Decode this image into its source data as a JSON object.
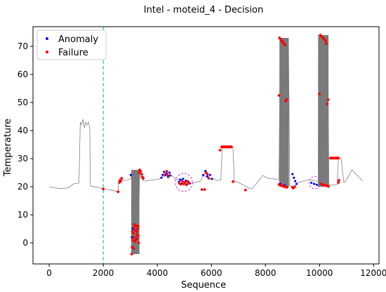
{
  "chart_data": {
    "type": "scatter",
    "title": "Intel - moteid_4 - Decision",
    "xlabel": "Sequence",
    "ylabel": "Temperature",
    "xlim": [
      -600,
      12200
    ],
    "ylim": [
      -7.5,
      77
    ],
    "xticks": [
      0,
      2000,
      4000,
      6000,
      8000,
      10000,
      12000
    ],
    "yticks": [
      0,
      10,
      20,
      30,
      40,
      50,
      60,
      70
    ],
    "legend_position": "upper-left",
    "vertical_line": {
      "x": 2000,
      "color": "#2ec4a0",
      "style": "dashed"
    },
    "highlight_circles": [
      {
        "x": 4980,
        "y": 21.5,
        "rx": 320,
        "ry": 3.2
      },
      {
        "x": 9830,
        "y": 21.5,
        "rx": 220,
        "ry": 2.2
      }
    ],
    "signal": {
      "name": "",
      "color": "#808080",
      "x": [
        0,
        400,
        700,
        900,
        1100,
        1150,
        1200,
        1250,
        1300,
        1350,
        1400,
        1450,
        1500,
        1520,
        1550,
        1800,
        2000,
        2300,
        2550,
        2570,
        2600,
        2800,
        3000,
        3050,
        3100,
        3150,
        3200,
        3250,
        3300,
        3350,
        3400,
        3500,
        3700,
        3900,
        4100,
        4200,
        4300,
        4400,
        4500,
        4600,
        4700,
        4800,
        4900,
        5000,
        5100,
        5200,
        5300,
        5400,
        5500,
        5600,
        5700,
        5800,
        5900,
        6000,
        6100,
        6200,
        6350,
        6400,
        6800,
        6850,
        7000,
        7200,
        7400,
        7500,
        7700,
        7900,
        8100,
        8300,
        8500,
        8550,
        8850,
        8900,
        9050,
        9200,
        9400,
        9600,
        9800,
        9900,
        10000,
        10050,
        10300,
        10350,
        10650,
        10700,
        10800,
        10900,
        11000,
        11200,
        11400,
        11600
      ],
      "y": [
        20,
        19.3,
        19.6,
        21,
        21.3,
        43,
        42,
        44,
        41,
        43,
        42,
        43,
        41,
        20.5,
        20.2,
        19.8,
        19.2,
        18.8,
        18.2,
        22,
        22.5,
        22.2,
        22.7,
        24,
        2,
        5,
        0,
        4,
        6,
        25,
        23,
        22,
        22.2,
        22.5,
        22.8,
        23.5,
        24,
        23.8,
        24.2,
        23.5,
        22.5,
        22.8,
        22.2,
        21.5,
        21,
        21.2,
        21.3,
        21.5,
        21.8,
        22,
        24,
        23.5,
        23.2,
        22.5,
        22.8,
        22.2,
        22.5,
        34,
        34,
        22,
        21.5,
        20.5,
        19.5,
        19.2,
        21.5,
        24,
        23,
        22.8,
        22.5,
        72,
        72,
        20.5,
        19.8,
        21.5,
        22,
        22.5,
        22.2,
        22,
        21.8,
        73,
        73,
        20.5,
        20.8,
        30,
        30,
        21.5,
        22.5,
        26,
        24,
        22
      ]
    },
    "dense_bands": [
      {
        "x0": 3040,
        "x1": 3330,
        "y0": -4,
        "y1": 26
      },
      {
        "x0": 8520,
        "x1": 8860,
        "y0": 20,
        "y1": 73
      },
      {
        "x0": 9950,
        "x1": 10330,
        "y0": 20,
        "y1": 74
      }
    ],
    "series": [
      {
        "name": "Anomaly",
        "marker": "dot",
        "color": "#0000ff",
        "points": [
          [
            3020,
            24.2
          ],
          [
            3060,
            2
          ],
          [
            3100,
            5
          ],
          [
            4150,
            23.2
          ],
          [
            4200,
            24.2
          ],
          [
            4250,
            25.3
          ],
          [
            4300,
            24.1
          ],
          [
            4350,
            24.7
          ],
          [
            4400,
            23.5
          ],
          [
            4450,
            25.0
          ],
          [
            4480,
            24.0
          ],
          [
            4800,
            21.8
          ],
          [
            4850,
            22.5
          ],
          [
            4900,
            21.1
          ],
          [
            4950,
            22.8
          ],
          [
            5000,
            21.4
          ],
          [
            5050,
            22.1
          ],
          [
            5100,
            20.8
          ],
          [
            5150,
            21.7
          ],
          [
            5200,
            21.2
          ],
          [
            5700,
            24.2
          ],
          [
            5780,
            25.6
          ],
          [
            5850,
            23.7
          ],
          [
            5950,
            24.2
          ],
          [
            6020,
            22.8
          ],
          [
            8550,
            21.0
          ],
          [
            8700,
            20.5
          ],
          [
            9000,
            24.5
          ],
          [
            9050,
            23.2
          ],
          [
            9100,
            22.0
          ],
          [
            9150,
            21.0
          ],
          [
            9700,
            21.4
          ],
          [
            9800,
            21.0
          ],
          [
            9900,
            20.7
          ]
        ]
      },
      {
        "name": "Failure",
        "marker": "diamond",
        "color": "#ff0000",
        "points": [
          [
            2000,
            19.2
          ],
          [
            2550,
            18.2
          ],
          [
            2600,
            21.5
          ],
          [
            2620,
            22.3
          ],
          [
            2650,
            22.0
          ],
          [
            2680,
            23.0
          ],
          [
            3050,
            -4.0
          ],
          [
            3070,
            -1.5
          ],
          [
            3090,
            1.0
          ],
          [
            3110,
            3.5
          ],
          [
            3130,
            5.5
          ],
          [
            3150,
            2.0
          ],
          [
            3170,
            0.5
          ],
          [
            3190,
            4.5
          ],
          [
            3210,
            6.0
          ],
          [
            3230,
            3.0
          ],
          [
            3250,
            1.5
          ],
          [
            3270,
            5.0
          ],
          [
            3290,
            2.5
          ],
          [
            3310,
            0.0
          ],
          [
            3080,
            4.0
          ],
          [
            3120,
            -2.0
          ],
          [
            3160,
            6.5
          ],
          [
            3200,
            1.0
          ],
          [
            3240,
            4.0
          ],
          [
            3280,
            6.0
          ],
          [
            3330,
            25.0
          ],
          [
            3350,
            26.0
          ],
          [
            3380,
            25.5
          ],
          [
            3420,
            24.5
          ],
          [
            3450,
            23.5
          ],
          [
            3480,
            23.0
          ],
          [
            4300,
            24.5
          ],
          [
            4350,
            25.5
          ],
          [
            4400,
            24.0
          ],
          [
            4820,
            21.2
          ],
          [
            4870,
            20.9
          ],
          [
            4920,
            22.0
          ],
          [
            4970,
            21.0
          ],
          [
            5020,
            21.6
          ],
          [
            5070,
            20.7
          ],
          [
            5120,
            21.9
          ],
          [
            5170,
            21.3
          ],
          [
            5650,
            19.0
          ],
          [
            5750,
            19.0
          ],
          [
            5800,
            25.0
          ],
          [
            5850,
            24.5
          ],
          [
            5900,
            23.0
          ],
          [
            6320,
            33.0
          ],
          [
            6380,
            34.2
          ],
          [
            6420,
            34.2
          ],
          [
            6460,
            34.2
          ],
          [
            6500,
            34.2
          ],
          [
            6540,
            34.2
          ],
          [
            6580,
            34.2
          ],
          [
            6620,
            34.2
          ],
          [
            6660,
            34.2
          ],
          [
            6700,
            34.2
          ],
          [
            6740,
            34.2
          ],
          [
            6800,
            21.8
          ],
          [
            7260,
            18.8
          ],
          [
            8500,
            52.5
          ],
          [
            8520,
            73.0
          ],
          [
            8560,
            72.5
          ],
          [
            8600,
            72.0
          ],
          [
            8640,
            71.5
          ],
          [
            8680,
            71.0
          ],
          [
            8720,
            70.5
          ],
          [
            8750,
            50.5
          ],
          [
            8780,
            51.0
          ],
          [
            8500,
            20.8
          ],
          [
            8560,
            20.5
          ],
          [
            8620,
            20.3
          ],
          [
            8680,
            20.1
          ],
          [
            8740,
            19.9
          ],
          [
            8800,
            19.8
          ],
          [
            9000,
            19.8
          ],
          [
            9030,
            19.5
          ],
          [
            9080,
            20.0
          ],
          [
            10000,
            53.0
          ],
          [
            10030,
            74.0
          ],
          [
            10080,
            73.5
          ],
          [
            10130,
            73.0
          ],
          [
            10180,
            72.5
          ],
          [
            10220,
            72.0
          ],
          [
            10250,
            71.0
          ],
          [
            10280,
            49.5
          ],
          [
            10320,
            51.0
          ],
          [
            10050,
            21.0
          ],
          [
            10120,
            20.7
          ],
          [
            10200,
            20.5
          ],
          [
            10280,
            20.3
          ],
          [
            10330,
            20.1
          ],
          [
            10400,
            30.2
          ],
          [
            10450,
            30.2
          ],
          [
            10500,
            30.2
          ],
          [
            10550,
            30.2
          ],
          [
            10600,
            30.2
          ],
          [
            10650,
            30.2
          ],
          [
            10700,
            30.2
          ],
          [
            10700,
            21.5
          ],
          [
            10720,
            22.3
          ]
        ]
      }
    ]
  }
}
